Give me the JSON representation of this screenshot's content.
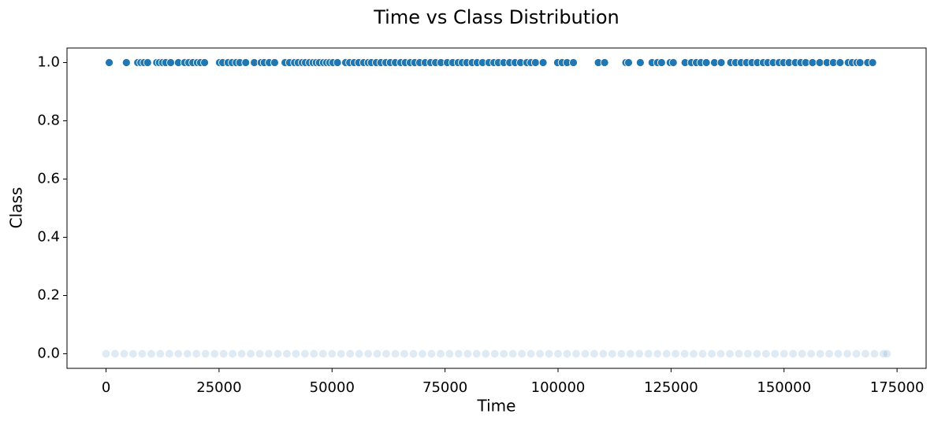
{
  "chart_data": {
    "type": "scatter",
    "title": "Time vs Class Distribution",
    "x_label": "Time",
    "y_label": "Class",
    "xlim": [
      -8640,
      181432
    ],
    "ylim": [
      -0.05,
      1.05
    ],
    "xticks": [
      0,
      25000,
      50000,
      75000,
      100000,
      125000,
      150000,
      175000
    ],
    "yticks": [
      {
        "value": 0,
        "label": "0.0"
      },
      0.2,
      0.4,
      0.6,
      0.8,
      {
        "value": 1,
        "label": "1.0"
      }
    ],
    "grid": false,
    "series": [
      {
        "color": "#1f77b4",
        "alpha": 0.15,
        "x": [
          0,
          2000,
          4000,
          6000,
          8000,
          10000,
          12000,
          14000,
          16000,
          18000,
          20000,
          22000,
          24000,
          26000,
          28000,
          30000,
          32000,
          34000,
          36000,
          38000,
          40000,
          42000,
          44000,
          46000,
          48000,
          50000,
          52000,
          54000,
          56000,
          58000,
          60000,
          62000,
          64000,
          66000,
          68000,
          70000,
          72000,
          74000,
          76000,
          78000,
          80000,
          82000,
          84000,
          86000,
          88000,
          90000,
          92000,
          94000,
          96000,
          98000,
          100000,
          102000,
          104000,
          106000,
          108000,
          110000,
          112000,
          114000,
          116000,
          118000,
          120000,
          122000,
          124000,
          126000,
          128000,
          130000,
          132000,
          134000,
          136000,
          138000,
          140000,
          142000,
          144000,
          146000,
          148000,
          150000,
          152000,
          154000,
          156000,
          158000,
          160000,
          162000,
          164000,
          166000,
          168000,
          170000,
          172000,
          172792
        ],
        "values": [
          0,
          0,
          0,
          0,
          0,
          0,
          0,
          0,
          0,
          0,
          0,
          0,
          0,
          0,
          0,
          0,
          0,
          0,
          0,
          0,
          0,
          0,
          0,
          0,
          0,
          0,
          0,
          0,
          0,
          0,
          0,
          0,
          0,
          0,
          0,
          0,
          0,
          0,
          0,
          0,
          0,
          0,
          0,
          0,
          0,
          0,
          0,
          0,
          0,
          0,
          0,
          0,
          0,
          0,
          0,
          0,
          0,
          0,
          0,
          0,
          0,
          0,
          0,
          0,
          0,
          0,
          0,
          0,
          0,
          0,
          0,
          0,
          0,
          0,
          0,
          0,
          0,
          0,
          0,
          0,
          0,
          0,
          0,
          0,
          0,
          0,
          0,
          0
        ]
      },
      {
        "color": "#1f77b4",
        "alpha": 1,
        "x": [
          700,
          4500,
          7000,
          7700,
          8400,
          9200,
          11200,
          11800,
          12500,
          13200,
          14300,
          16000,
          17400,
          18300,
          19200,
          20200,
          20900,
          21800,
          25100,
          25800,
          27000,
          27900,
          28800,
          29600,
          30900,
          32800,
          34300,
          35000,
          36100,
          37300,
          39600,
          40600,
          41700,
          42500,
          43400,
          44100,
          45000,
          45800,
          46500,
          47200,
          48100,
          48800,
          49500,
          50200,
          51200,
          53000,
          53900,
          54900,
          55900,
          57000,
          58000,
          58700,
          59800,
          60800,
          61900,
          62900,
          64000,
          65200,
          66200,
          67300,
          68300,
          69400,
          70600,
          71800,
          72900,
          74100,
          75500,
          76700,
          77900,
          78800,
          79800,
          81000,
          82100,
          83300,
          84700,
          85800,
          86800,
          88000,
          89300,
          90500,
          91700,
          93100,
          94000,
          95000,
          96700,
          99900,
          100900,
          102000,
          103400,
          108900,
          110300,
          115000,
          115600,
          118200,
          120800,
          122000,
          122900,
          124800,
          125500,
          128100,
          129500,
          130600,
          131600,
          132800,
          134600,
          136100,
          138200,
          139300,
          140500,
          141700,
          142900,
          144100,
          145400,
          146400,
          147600,
          148900,
          149900,
          151100,
          152500,
          153700,
          154800,
          156300,
          157900,
          159500,
          160900,
          162400,
          164200,
          165100,
          166100,
          166800,
          168500,
          169600
        ],
        "values": [
          1,
          1,
          1,
          1,
          1,
          1,
          1,
          1,
          1,
          1,
          1,
          1,
          1,
          1,
          1,
          1,
          1,
          1,
          1,
          1,
          1,
          1,
          1,
          1,
          1,
          1,
          1,
          1,
          1,
          1,
          1,
          1,
          1,
          1,
          1,
          1,
          1,
          1,
          1,
          1,
          1,
          1,
          1,
          1,
          1,
          1,
          1,
          1,
          1,
          1,
          1,
          1,
          1,
          1,
          1,
          1,
          1,
          1,
          1,
          1,
          1,
          1,
          1,
          1,
          1,
          1,
          1,
          1,
          1,
          1,
          1,
          1,
          1,
          1,
          1,
          1,
          1,
          1,
          1,
          1,
          1,
          1,
          1,
          1,
          1,
          1,
          1,
          1,
          1,
          1,
          1,
          1,
          1,
          1,
          1,
          1,
          1,
          1,
          1,
          1,
          1,
          1,
          1,
          1,
          1,
          1,
          1,
          1,
          1,
          1,
          1,
          1,
          1,
          1,
          1,
          1,
          1,
          1,
          1,
          1,
          1,
          1,
          1,
          1,
          1,
          1,
          1,
          1,
          1,
          1,
          1,
          1
        ]
      }
    ]
  }
}
